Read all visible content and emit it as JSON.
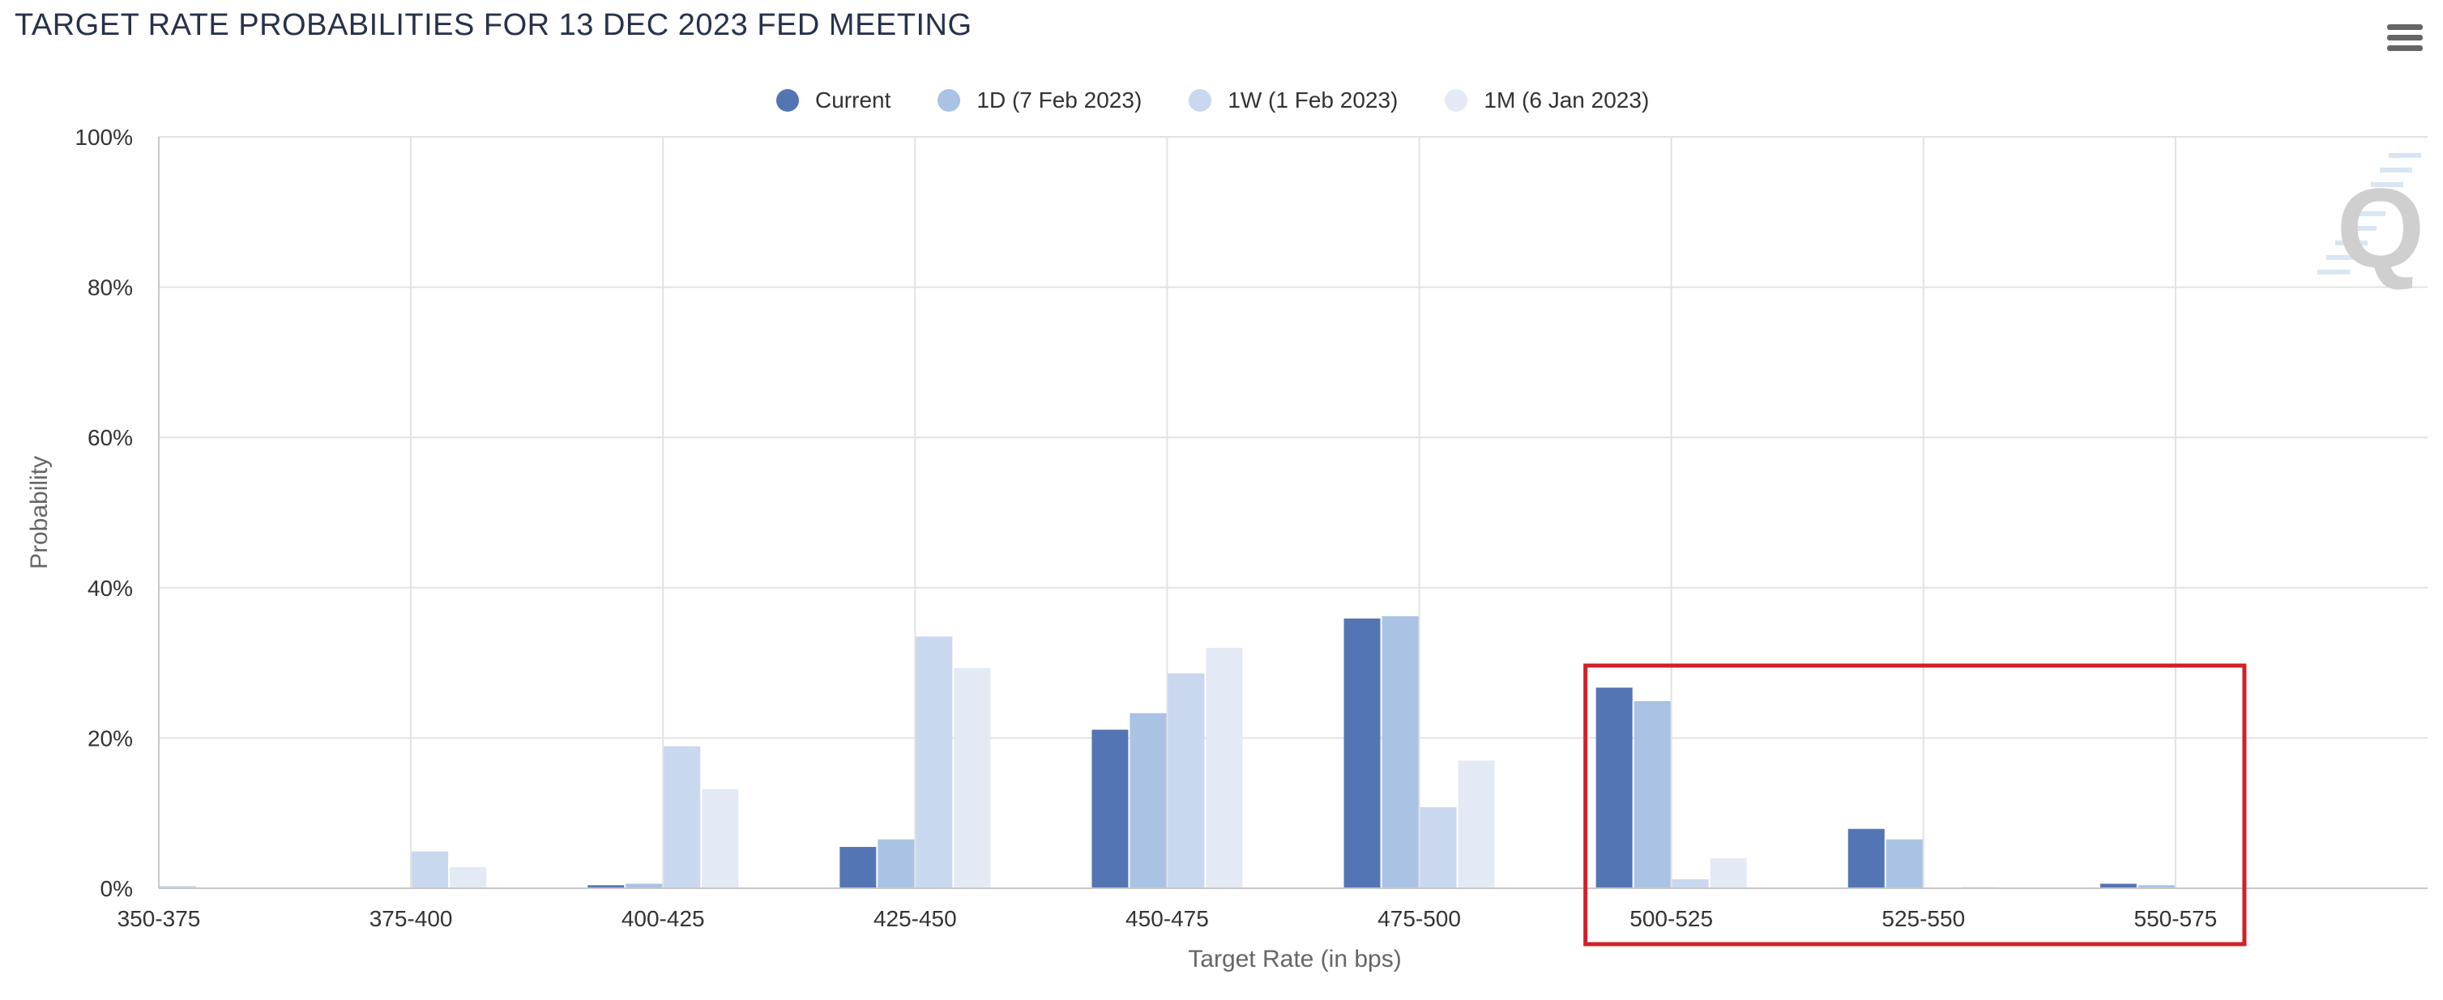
{
  "chart_data": {
    "type": "bar",
    "title": "TARGET RATE PROBABILITIES FOR 13 DEC 2023 FED MEETING",
    "xlabel": "Target Rate (in bps)",
    "ylabel": "Probability",
    "ylim": [
      0,
      100
    ],
    "yticks": [
      "0%",
      "20%",
      "40%",
      "60%",
      "80%",
      "100%"
    ],
    "categories": [
      "350-375",
      "375-400",
      "400-425",
      "425-450",
      "450-475",
      "475-500",
      "500-525",
      "525-550",
      "550-575"
    ],
    "series": [
      {
        "name": "Current",
        "color": "#5475b4",
        "values": [
          0.0,
          0.0,
          0.4,
          5.5,
          21.1,
          35.9,
          26.7,
          7.9,
          0.6
        ]
      },
      {
        "name": "1D (7 Feb 2023)",
        "color": "#aac2e4",
        "values": [
          0.0,
          0.0,
          0.6,
          6.5,
          23.3,
          36.2,
          24.9,
          6.5,
          0.4
        ]
      },
      {
        "name": "1W (1 Feb 2023)",
        "color": "#c9d8ee",
        "values": [
          0.3,
          4.9,
          18.9,
          33.5,
          28.6,
          10.8,
          1.2,
          0.0,
          0.0
        ]
      },
      {
        "name": "1M (6 Jan 2023)",
        "color": "#e3eaf6",
        "values": [
          0.0,
          2.8,
          13.2,
          29.3,
          32.0,
          17.0,
          4.0,
          0.2,
          0.0
        ]
      }
    ],
    "grid": true,
    "legend_position": "top-center",
    "highlight_categories": [
      "500-525",
      "525-550",
      "550-575"
    ],
    "highlight_color": "#d0202a"
  },
  "watermark_icon": "q-logo-icon",
  "menu_icon": "hamburger-menu-icon"
}
